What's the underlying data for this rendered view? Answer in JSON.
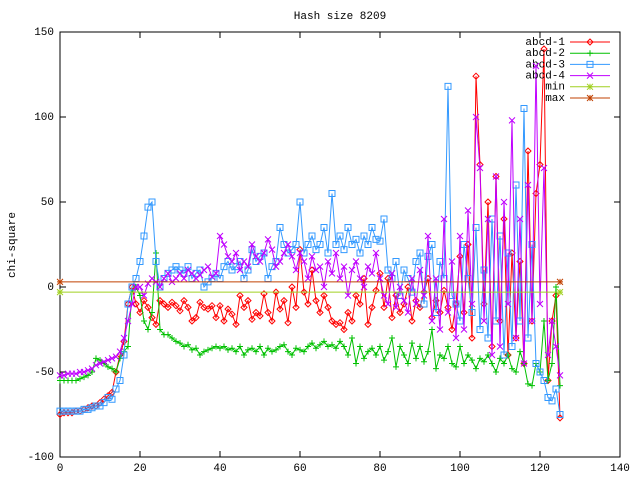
{
  "chart_data": {
    "type": "line",
    "title": "Hash size 8209",
    "y_label": "chi-square",
    "xlim": [
      0,
      140
    ],
    "xticks": [
      0,
      20,
      40,
      60,
      80,
      100,
      120,
      140
    ],
    "ylim": [
      -100,
      150
    ],
    "yticks": [
      -100,
      -50,
      0,
      50,
      100,
      150
    ],
    "grid": false,
    "legend": "top-right",
    "x": [
      0,
      1,
      2,
      3,
      4,
      5,
      6,
      7,
      8,
      9,
      10,
      11,
      12,
      13,
      14,
      15,
      16,
      17,
      18,
      19,
      20,
      21,
      22,
      23,
      24,
      25,
      26,
      27,
      28,
      29,
      30,
      31,
      32,
      33,
      34,
      35,
      36,
      37,
      38,
      39,
      40,
      41,
      42,
      43,
      44,
      45,
      46,
      47,
      48,
      49,
      50,
      51,
      52,
      53,
      54,
      55,
      56,
      57,
      58,
      59,
      60,
      61,
      62,
      63,
      64,
      65,
      66,
      67,
      68,
      69,
      70,
      71,
      72,
      73,
      74,
      75,
      76,
      77,
      78,
      79,
      80,
      81,
      82,
      83,
      84,
      85,
      86,
      87,
      88,
      89,
      90,
      91,
      92,
      93,
      94,
      95,
      96,
      97,
      98,
      99,
      100,
      101,
      102,
      103,
      104,
      105,
      106,
      107,
      108,
      109,
      110,
      111,
      112,
      113,
      114,
      115,
      116,
      117,
      118,
      119,
      120,
      121,
      122,
      123,
      124,
      125
    ],
    "series": [
      {
        "name": "abcd-1",
        "color": "#ff0000",
        "marker": "diamond",
        "values": [
          -75,
          -74,
          -74,
          -74,
          -73,
          -73,
          -72,
          -71,
          -70,
          -70,
          -68,
          -66,
          -64,
          -62,
          -50,
          -40,
          -32,
          -10,
          0,
          -10,
          -15,
          -8,
          -12,
          -18,
          -22,
          -8,
          -10,
          -12,
          -9,
          -11,
          -14,
          -8,
          -12,
          -20,
          -18,
          -9,
          -12,
          -13,
          -11,
          -18,
          -11,
          -20,
          -13,
          -16,
          -22,
          -5,
          -12,
          -8,
          -19,
          -15,
          -17,
          -4,
          -15,
          -20,
          -3,
          -13,
          -8,
          -21,
          0,
          -12,
          22,
          -3,
          -10,
          10,
          -8,
          -15,
          -5,
          -12,
          -20,
          -22,
          -21,
          -25,
          -15,
          -20,
          -5,
          -10,
          5,
          -22,
          -12,
          -2,
          8,
          -12,
          5,
          -18,
          -5,
          -15,
          -10,
          0,
          -20,
          -8,
          -12,
          -3,
          5,
          -18,
          -8,
          -15,
          -2,
          -12,
          -25,
          -10,
          18,
          -15,
          25,
          -30,
          124,
          72,
          -10,
          50,
          -35,
          65,
          -20,
          40,
          -40,
          20,
          -30,
          15,
          -45,
          80,
          -20,
          55,
          72,
          140,
          -55,
          -20,
          -5,
          -77
        ]
      },
      {
        "name": "abcd-2",
        "color": "#00c000",
        "marker": "plus",
        "values": [
          -55,
          -55,
          -55,
          -55,
          -55,
          -54,
          -53,
          -52,
          -50,
          -42,
          -43,
          -45,
          -47,
          -48,
          -50,
          -42,
          -38,
          -35,
          -3,
          0,
          -5,
          -20,
          -25,
          -15,
          20,
          -25,
          -28,
          -28,
          -30,
          -32,
          -33,
          -35,
          -34,
          -37,
          -36,
          -40,
          -38,
          -37,
          -36,
          -35,
          -36,
          -35,
          -37,
          -36,
          -38,
          -35,
          -40,
          -37,
          -36,
          -38,
          -35,
          -40,
          -36,
          -38,
          -37,
          -35,
          -34,
          -38,
          -40,
          -36,
          -37,
          -38,
          -35,
          -33,
          -36,
          -34,
          -32,
          -35,
          -34,
          -36,
          -32,
          -35,
          -40,
          -30,
          -45,
          -35,
          -42,
          -38,
          -36,
          -40,
          -35,
          -43,
          -38,
          -30,
          -47,
          -35,
          -40,
          -45,
          -33,
          -42,
          -35,
          -44,
          -38,
          -25,
          -48,
          -40,
          -42,
          -35,
          -45,
          -47,
          -35,
          -45,
          -40,
          -43,
          -48,
          -42,
          -44,
          -40,
          -45,
          -50,
          -42,
          -45,
          -40,
          -48,
          -50,
          -38,
          -45,
          -57,
          -58,
          -45,
          -50,
          -20,
          -55,
          -45,
          0,
          -58
        ]
      },
      {
        "name": "abcd-3",
        "color": "#3399ff",
        "marker": "square",
        "values": [
          -73,
          -73,
          -73,
          -73,
          -73,
          -73,
          -72,
          -72,
          -71,
          -70,
          -70,
          -68,
          -65,
          -66,
          -60,
          -55,
          -40,
          -10,
          0,
          5,
          15,
          30,
          47,
          50,
          15,
          0,
          5,
          8,
          10,
          12,
          10,
          8,
          12,
          5,
          8,
          10,
          0,
          3,
          5,
          8,
          5,
          12,
          15,
          10,
          12,
          15,
          5,
          10,
          22,
          15,
          18,
          20,
          5,
          12,
          15,
          35,
          25,
          20,
          22,
          25,
          50,
          20,
          25,
          30,
          22,
          25,
          35,
          20,
          55,
          25,
          30,
          22,
          35,
          25,
          28,
          20,
          30,
          25,
          35,
          28,
          27,
          40,
          10,
          5,
          15,
          -5,
          10,
          5,
          -3,
          15,
          20,
          -10,
          18,
          25,
          -15,
          15,
          5,
          118,
          -5,
          -10,
          -20,
          25,
          5,
          -15,
          35,
          -25,
          10,
          -30,
          40,
          -20,
          30,
          -40,
          20,
          -35,
          60,
          -20,
          105,
          -30,
          25,
          -45,
          -50,
          -55,
          -65,
          -67,
          -60,
          -75
        ]
      },
      {
        "name": "abcd-4",
        "color": "#c000ff",
        "marker": "cross",
        "values": [
          -52,
          -52,
          -51,
          -51,
          -51,
          -50,
          -50,
          -49,
          -48,
          -46,
          -45,
          -44,
          -43,
          -42,
          -41,
          -38,
          -30,
          -20,
          -10,
          0,
          0,
          -5,
          2,
          5,
          3,
          0,
          5,
          8,
          3,
          5,
          8,
          5,
          10,
          8,
          5,
          7,
          10,
          12,
          6,
          8,
          30,
          25,
          18,
          15,
          20,
          10,
          15,
          12,
          25,
          18,
          15,
          20,
          28,
          22,
          12,
          15,
          20,
          25,
          18,
          10,
          20,
          15,
          5,
          18,
          10,
          12,
          0,
          15,
          8,
          20,
          5,
          12,
          -5,
          10,
          15,
          5,
          0,
          12,
          8,
          20,
          5,
          -5,
          -10,
          8,
          -12,
          0,
          -8,
          -15,
          5,
          -10,
          10,
          -5,
          30,
          -20,
          5,
          -25,
          40,
          -15,
          15,
          -30,
          30,
          -25,
          45,
          -10,
          100,
          70,
          -20,
          40,
          -40,
          65,
          -35,
          50,
          -10,
          98,
          -30,
          40,
          -45,
          60,
          -20,
          130,
          -10,
          70,
          -40,
          -20,
          -35,
          -52
        ]
      },
      {
        "name": "min",
        "color": "#a0d020",
        "marker": "star",
        "x": [
          0,
          125
        ],
        "values": [
          -3,
          -3
        ]
      },
      {
        "name": "max",
        "color": "#c04000",
        "marker": "star",
        "x": [
          0,
          125
        ],
        "values": [
          3,
          3
        ]
      }
    ]
  }
}
